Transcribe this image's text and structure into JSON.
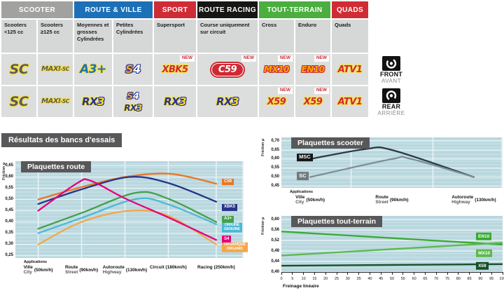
{
  "table": {
    "groups": [
      {
        "label": "SCOOTER",
        "color": "#a1a1a0",
        "span": 2
      },
      {
        "label": "ROUTE & VILLE",
        "color": "#1c70b7",
        "span": 2
      },
      {
        "label": "SPORT",
        "color": "#d02c35",
        "span": 1
      },
      {
        "label": "ROUTE RACING",
        "color": "#161615",
        "span": 1
      },
      {
        "label": "TOUT-TERRAIN",
        "color": "#4bae3f",
        "span": 2
      },
      {
        "label": "QUADS",
        "color": "#d02c35",
        "span": 1
      }
    ],
    "subheaders": [
      "Scooters <125 cc",
      "Scooters ≥125 cc",
      "Moyennes et grosses Cylindrées",
      "Petites Cylindrées",
      "Supersport",
      "Course uniquement sur circuit",
      "Cross",
      "Enduro",
      "Quads"
    ],
    "new_label": "NEW",
    "rows": [
      {
        "axle": "front",
        "cells": [
          {
            "logos": [
              "SC"
            ]
          },
          {
            "logos": [
              "MAXI-SC"
            ]
          },
          {
            "logos": [
              "A3+"
            ]
          },
          {
            "logos": [
              "S4"
            ]
          },
          {
            "logos": [
              "XBK5"
            ],
            "new": true
          },
          {
            "logos": [
              "C59"
            ],
            "new": true
          },
          {
            "logos": [
              "MX10"
            ],
            "new": true
          },
          {
            "logos": [
              "EN10"
            ],
            "new": true
          },
          {
            "logos": [
              "ATV1"
            ]
          }
        ]
      },
      {
        "axle": "rear",
        "cells": [
          {
            "logos": [
              "SC"
            ]
          },
          {
            "logos": [
              "MAXI-SC"
            ]
          },
          {
            "logos": [
              "RX3"
            ]
          },
          {
            "logos": [
              "S4",
              "RX3"
            ]
          },
          {
            "logos": [
              "RX3"
            ]
          },
          {
            "logos": [
              "RX3"
            ]
          },
          {
            "logos": [
              "X59"
            ],
            "new": true
          },
          {
            "logos": [
              "X59"
            ],
            "new": true
          },
          {
            "logos": [
              "ATV1"
            ]
          }
        ]
      }
    ],
    "front": {
      "en": "FRONT",
      "fr": "AVANT"
    },
    "rear": {
      "en": "REAR",
      "fr": "ARRIÈRE"
    }
  },
  "results_title": "Résultats des bancs d'essais",
  "chart_data": [
    {
      "id": "route",
      "type": "line",
      "title": "Plaquettes route",
      "ylabel": "Friction µ",
      "ylim": [
        0.24,
        0.67
      ],
      "yticks": [
        0.65,
        0.6,
        0.55,
        0.5,
        0.45,
        0.4,
        0.35,
        0.3,
        0.25
      ],
      "x_caption": "Applications",
      "categories": [
        {
          "line1": "Ville",
          "line2": "City",
          "speed": "(50km/h)",
          "pos": 10
        },
        {
          "line1": "Route",
          "line2": "Street",
          "speed": "(90km/h)",
          "pos": 29
        },
        {
          "line1": "Autoroute",
          "line2": "Highway",
          "speed": "(130km/h)",
          "pos": 48
        },
        {
          "line1": "Circuit (180km/h)",
          "pos": 67
        },
        {
          "line1": "Racing (250km/h)",
          "pos": 88
        }
      ],
      "series": [
        {
          "name": "C59",
          "color": "#e87722",
          "label": [
            "C59"
          ],
          "label_x": 90.5,
          "label_y": 0.578,
          "points": [
            [
              10,
              0.5
            ],
            [
              29,
              0.555
            ],
            [
              48,
              0.6
            ],
            [
              68,
              0.614
            ],
            [
              88,
              0.57
            ]
          ]
        },
        {
          "name": "XBK5",
          "color": "#28348a",
          "label": [
            "XBK5"
          ],
          "label_x": 90.5,
          "label_y": 0.465,
          "points": [
            [
              10,
              0.48
            ],
            [
              29,
              0.545
            ],
            [
              50,
              0.6
            ],
            [
              67,
              0.573
            ],
            [
              88,
              0.49
            ]
          ]
        },
        {
          "name": "A3+",
          "color": "#44a048",
          "label": [
            "A3+"
          ],
          "label_x": 90.5,
          "label_y": 0.412,
          "points": [
            [
              10,
              0.37
            ],
            [
              29,
              0.44
            ],
            [
              53,
              0.53
            ],
            [
              67,
              0.503
            ],
            [
              88,
              0.4
            ]
          ]
        },
        {
          "name": "ORIGINE / GENUINE",
          "color": "#4db8d6",
          "label": [
            "ORIGINE",
            "GENUINE"
          ],
          "label_x": 90.5,
          "label_y": 0.375,
          "points": [
            [
              10,
              0.35
            ],
            [
              29,
              0.418
            ],
            [
              53,
              0.502
            ],
            [
              67,
              0.478
            ],
            [
              88,
              0.39
            ]
          ]
        },
        {
          "name": "ORGANIQUE / ORGANIC",
          "color": "#f2a74b",
          "label": [
            "ORGANIQUE",
            "ORGANIC"
          ],
          "label_x": 90.5,
          "label_y": 0.288,
          "points": [
            [
              10,
              0.3
            ],
            [
              29,
              0.4
            ],
            [
              50,
              0.45
            ],
            [
              67,
              0.427
            ],
            [
              88,
              0.3
            ]
          ]
        },
        {
          "name": "S4",
          "color": "#e5007e",
          "label": [
            "S4"
          ],
          "label_x": 90.5,
          "label_y": 0.323,
          "points": [
            [
              10,
              0.45
            ],
            [
              27,
              0.572
            ],
            [
              33,
              0.583
            ],
            [
              48,
              0.505
            ],
            [
              67,
              0.42
            ],
            [
              88,
              0.32
            ]
          ]
        }
      ]
    },
    {
      "id": "scooter",
      "type": "line",
      "title": "Plaquettes scooter",
      "ylabel": "Friction µ",
      "ylim": [
        0.44,
        0.72
      ],
      "yticks": [
        0.7,
        0.65,
        0.6,
        0.55,
        0.5,
        0.45
      ],
      "x_caption": "Applications",
      "categories": [
        {
          "line1": "Ville",
          "line2": "City",
          "speed": "(50km/h)",
          "pos": 13
        },
        {
          "line1": "Route",
          "line2": "Street",
          "speed": "(90km/h)",
          "pos": 50
        },
        {
          "line1": "Autoroute",
          "line2": "Highway",
          "speed": "(130km/h)",
          "pos": 87
        }
      ],
      "series": [
        {
          "name": "MSC",
          "color": "#2b3a42",
          "label": [
            "MSC"
          ],
          "label_x": 7,
          "label_y": 0.608,
          "label_bg": "#161616",
          "points": [
            [
              13,
              0.6
            ],
            [
              38,
              0.655
            ],
            [
              50,
              0.65
            ],
            [
              87,
              0.5
            ]
          ]
        },
        {
          "name": "SC",
          "color": "#7d8f96",
          "label": [
            "SC"
          ],
          "label_x": 7,
          "label_y": 0.505,
          "label_bg": "#70797d",
          "points": [
            [
              13,
              0.5
            ],
            [
              50,
              0.6
            ],
            [
              58,
              0.602
            ],
            [
              87,
              0.5
            ]
          ]
        }
      ]
    },
    {
      "id": "tt",
      "type": "line",
      "title": "Plaquettes tout-terrain",
      "ylabel": "Friction µ",
      "ylim": [
        0.4,
        0.615
      ],
      "yticks": [
        0.6,
        0.56,
        0.52,
        0.48,
        0.44,
        0.4
      ],
      "xlabel": "Freinage linéaire",
      "xticks": [
        0,
        5,
        10,
        15,
        20,
        25,
        30,
        35,
        40,
        45,
        50,
        55,
        60,
        65,
        70,
        75,
        80,
        85,
        90,
        95,
        100
      ],
      "series": [
        {
          "name": "EN10",
          "color": "#3aaa35",
          "label": [
            "EN10"
          ],
          "label_x": 88,
          "label_y": 0.536,
          "label_bg": "#3aaa35",
          "points": [
            [
              0,
              0.555
            ],
            [
              100,
              0.505
            ]
          ]
        },
        {
          "name": "MX10",
          "color": "#5cb94c",
          "label": [
            "MX10"
          ],
          "label_x": 88,
          "label_y": 0.472,
          "label_bg": "#5cb94c",
          "points": [
            [
              0,
              0.463
            ],
            [
              100,
              0.512
            ]
          ]
        },
        {
          "name": "X59",
          "color": "#17502b",
          "label": [
            "X59"
          ],
          "label_x": 88,
          "label_y": 0.424,
          "label_bg": "#17502b",
          "points": [
            [
              0,
              0.424
            ],
            [
              100,
              0.43
            ]
          ]
        }
      ]
    }
  ]
}
